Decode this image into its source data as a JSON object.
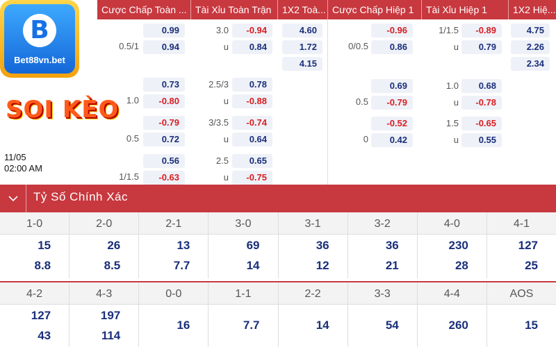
{
  "headers": [
    "Cược Chấp Toàn ...",
    "Tài Xỉu Toàn Trận",
    "1X2 Toà...",
    "Cược Chấp Hiệp 1",
    "Tài Xỉu Hiệp 1",
    "1X2 Hiệ..."
  ],
  "logo": {
    "text": "Bet88vn.bet",
    "letter": "B"
  },
  "promo": "SOI KÈO",
  "match": {
    "date": "11/05",
    "time": "02:00 AM"
  },
  "full": {
    "rows": [
      {
        "hcp_line": "0.5/1",
        "hcp": [
          "0.99",
          "0.94"
        ],
        "ou_line": "3.0",
        "ou_u": "u",
        "ou": [
          "-0.94",
          "0.84"
        ],
        "x12": [
          "4.60",
          "1.72",
          "4.15"
        ]
      },
      {
        "hcp_line": "1.0",
        "hcp": [
          "0.73",
          "-0.80"
        ],
        "ou_line": "2.5/3",
        "ou_u": "u",
        "ou": [
          "0.78",
          "-0.88"
        ]
      },
      {
        "hcp_line": "0.5",
        "hcp": [
          "-0.79",
          "0.72"
        ],
        "ou_line": "3/3.5",
        "ou_u": "u",
        "ou": [
          "-0.74",
          "0.64"
        ]
      },
      {
        "hcp_line": "1/1.5",
        "hcp": [
          "0.56",
          "-0.63"
        ],
        "ou_line": "2.5",
        "ou_u": "u",
        "ou": [
          "0.65",
          "-0.75"
        ]
      }
    ]
  },
  "half": {
    "rows": [
      {
        "hcp_line": "0/0.5",
        "hcp": [
          "-0.96",
          "0.86"
        ],
        "ou_line": "1/1.5",
        "ou_u": "u",
        "ou": [
          "-0.89",
          "0.79"
        ],
        "x12": [
          "4.75",
          "2.26",
          "2.34"
        ]
      },
      {
        "hcp_line": "0.5",
        "hcp": [
          "0.69",
          "-0.79"
        ],
        "ou_line": "1.0",
        "ou_u": "u",
        "ou": [
          "0.68",
          "-0.78"
        ]
      },
      {
        "hcp_line": "0",
        "hcp": [
          "-0.52",
          "0.42"
        ],
        "ou_line": "1.5",
        "ou_u": "u",
        "ou": [
          "-0.65",
          "0.55"
        ]
      }
    ]
  },
  "correct_score": {
    "title": "Tỷ Số Chính Xác",
    "row1": [
      {
        "score": "1-0",
        "v1": "15",
        "v2": "8.8"
      },
      {
        "score": "2-0",
        "v1": "26",
        "v2": "8.5"
      },
      {
        "score": "2-1",
        "v1": "13",
        "v2": "7.7"
      },
      {
        "score": "3-0",
        "v1": "69",
        "v2": "14"
      },
      {
        "score": "3-1",
        "v1": "36",
        "v2": "12"
      },
      {
        "score": "3-2",
        "v1": "36",
        "v2": "21"
      },
      {
        "score": "4-0",
        "v1": "230",
        "v2": "28"
      },
      {
        "score": "4-1",
        "v1": "127",
        "v2": "25"
      }
    ],
    "row2": [
      {
        "score": "4-2",
        "v1": "127",
        "v2": "43"
      },
      {
        "score": "4-3",
        "v1": "197",
        "v2": "114"
      },
      {
        "score": "0-0",
        "v1": "16",
        "v2": ""
      },
      {
        "score": "1-1",
        "v1": "7.7",
        "v2": ""
      },
      {
        "score": "2-2",
        "v1": "14",
        "v2": ""
      },
      {
        "score": "3-3",
        "v1": "54",
        "v2": ""
      },
      {
        "score": "4-4",
        "v1": "260",
        "v2": ""
      },
      {
        "score": "AOS",
        "v1": "15",
        "v2": ""
      }
    ]
  },
  "colors": {
    "header_bg": "#c8383f",
    "positive": "#1a2f7a",
    "negative": "#d81e23"
  }
}
